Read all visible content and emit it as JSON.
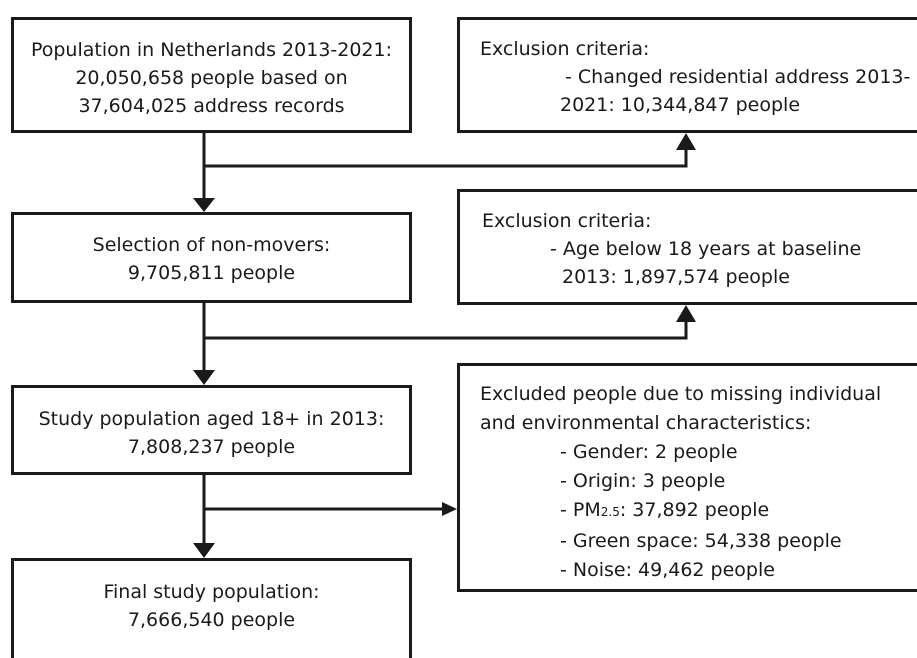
{
  "boxes": {
    "population": {
      "lines": [
        "Population in Netherlands 2013-2021:",
        "20,050,658 people based on",
        "37,604,025 address records"
      ]
    },
    "exclusion_moved": {
      "title": "Exclusion criteria:",
      "lines": [
        "- Changed residential address 2013-",
        "2021: 10,344,847 people"
      ]
    },
    "non_movers": {
      "lines": [
        "Selection of non-movers:",
        "9,705,811 people"
      ]
    },
    "exclusion_age": {
      "title": "Exclusion criteria:",
      "lines": [
        "- Age below 18 years at baseline",
        "2013: 1,897,574 people"
      ]
    },
    "study_population": {
      "lines": [
        "Study population aged 18+ in 2013:",
        "7,808,237 people"
      ]
    },
    "exclusion_missing": {
      "title_lines": [
        "Excluded people due to missing individual",
        "and environmental characteristics:"
      ],
      "items": {
        "gender": "- Gender: 2 people",
        "origin": "- Origin: 3 people",
        "pm_prefix": "- PM",
        "pm_sub": "2.5",
        "pm_rest": ": 37,892 people",
        "green_space": "- Green space: 54,338 people",
        "noise": "- Noise: 49,462 people"
      }
    },
    "final": {
      "lines": [
        "Final study population:",
        "7,666,540 people"
      ]
    }
  },
  "colors": {
    "stroke": "#1a1a1a",
    "background": "#ffffff"
  }
}
